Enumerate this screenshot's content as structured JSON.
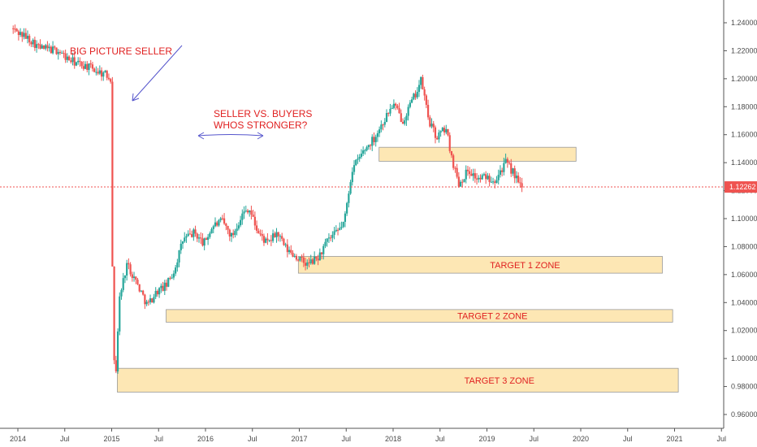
{
  "chart_data": {
    "type": "candlestick",
    "y_range": [
      0.95,
      1.25
    ],
    "y_ticks": [
      "0.96000",
      "0.98000",
      "1.00000",
      "1.02000",
      "1.04000",
      "1.06000",
      "1.08000",
      "1.10000",
      "1.12000",
      "1.14000",
      "1.16000",
      "1.18000",
      "1.20000",
      "1.22000",
      "1.24000"
    ],
    "x_ticks": [
      "2014",
      "Jul",
      "2015",
      "Jul",
      "2016",
      "Jul",
      "2017",
      "Jul",
      "2018",
      "Jul",
      "2019",
      "Jul",
      "2020",
      "Jul",
      "2021",
      "Jul"
    ],
    "current_price": "1.12262",
    "price_path": [
      [
        2013.95,
        1.236
      ],
      [
        2014.05,
        1.232
      ],
      [
        2014.15,
        1.228
      ],
      [
        2014.25,
        1.222
      ],
      [
        2014.35,
        1.221
      ],
      [
        2014.45,
        1.22
      ],
      [
        2014.55,
        1.214
      ],
      [
        2014.65,
        1.211
      ],
      [
        2014.75,
        1.209
      ],
      [
        2014.85,
        1.206
      ],
      [
        2014.95,
        1.203
      ],
      [
        2015.02,
        1.2
      ],
      [
        2015.03,
        1.01
      ],
      [
        2015.06,
        0.985
      ],
      [
        2015.1,
        1.042
      ],
      [
        2015.18,
        1.068
      ],
      [
        2015.28,
        1.055
      ],
      [
        2015.4,
        1.038
      ],
      [
        2015.5,
        1.048
      ],
      [
        2015.6,
        1.052
      ],
      [
        2015.68,
        1.062
      ],
      [
        2015.78,
        1.085
      ],
      [
        2015.9,
        1.09
      ],
      [
        2016.0,
        1.082
      ],
      [
        2016.1,
        1.095
      ],
      [
        2016.2,
        1.098
      ],
      [
        2016.3,
        1.087
      ],
      [
        2016.4,
        1.102
      ],
      [
        2016.48,
        1.108
      ],
      [
        2016.58,
        1.09
      ],
      [
        2016.68,
        1.082
      ],
      [
        2016.78,
        1.09
      ],
      [
        2016.88,
        1.078
      ],
      [
        2016.98,
        1.073
      ],
      [
        2017.1,
        1.067
      ],
      [
        2017.22,
        1.072
      ],
      [
        2017.32,
        1.084
      ],
      [
        2017.42,
        1.09
      ],
      [
        2017.5,
        1.098
      ],
      [
        2017.58,
        1.135
      ],
      [
        2017.7,
        1.148
      ],
      [
        2017.82,
        1.158
      ],
      [
        2017.92,
        1.17
      ],
      [
        2018.02,
        1.182
      ],
      [
        2018.12,
        1.17
      ],
      [
        2018.25,
        1.188
      ],
      [
        2018.32,
        1.199
      ],
      [
        2018.4,
        1.17
      ],
      [
        2018.48,
        1.158
      ],
      [
        2018.58,
        1.165
      ],
      [
        2018.65,
        1.142
      ],
      [
        2018.72,
        1.125
      ],
      [
        2018.82,
        1.135
      ],
      [
        2018.92,
        1.128
      ],
      [
        2019.0,
        1.13
      ],
      [
        2019.1,
        1.128
      ],
      [
        2019.22,
        1.14
      ],
      [
        2019.3,
        1.133
      ],
      [
        2019.38,
        1.122
      ]
    ],
    "zones": [
      {
        "x_start": 2017.85,
        "x_end": 2019.95,
        "y_low": 1.141,
        "y_high": 1.151,
        "label": ""
      },
      {
        "x_start": 2016.99,
        "x_end": 2020.87,
        "y_low": 1.061,
        "y_high": 1.073,
        "label": "TARGET 1 ZONE"
      },
      {
        "x_start": 2015.58,
        "x_end": 2020.98,
        "y_low": 1.026,
        "y_high": 1.035,
        "label": "TARGET 2 ZONE"
      },
      {
        "x_start": 2015.06,
        "x_end": 2021.04,
        "y_low": 0.976,
        "y_high": 0.993,
        "label": "TARGET 3 ZONE"
      }
    ],
    "annotations": [
      {
        "text": "BIG PICTURE SELLER"
      },
      {
        "text": "SELLER VS. BUYERS"
      },
      {
        "text": "WHOS STRONGER?"
      }
    ],
    "colors": {
      "up": "#26a69a",
      "down": "#ef5350",
      "zone_fill": "#fde3a7",
      "zone_stroke": "#9a9a9a",
      "price_line": "#ef5350",
      "annotation": "#e02020",
      "arrow": "#5555cc"
    },
    "grid": false,
    "scale": "linear"
  }
}
